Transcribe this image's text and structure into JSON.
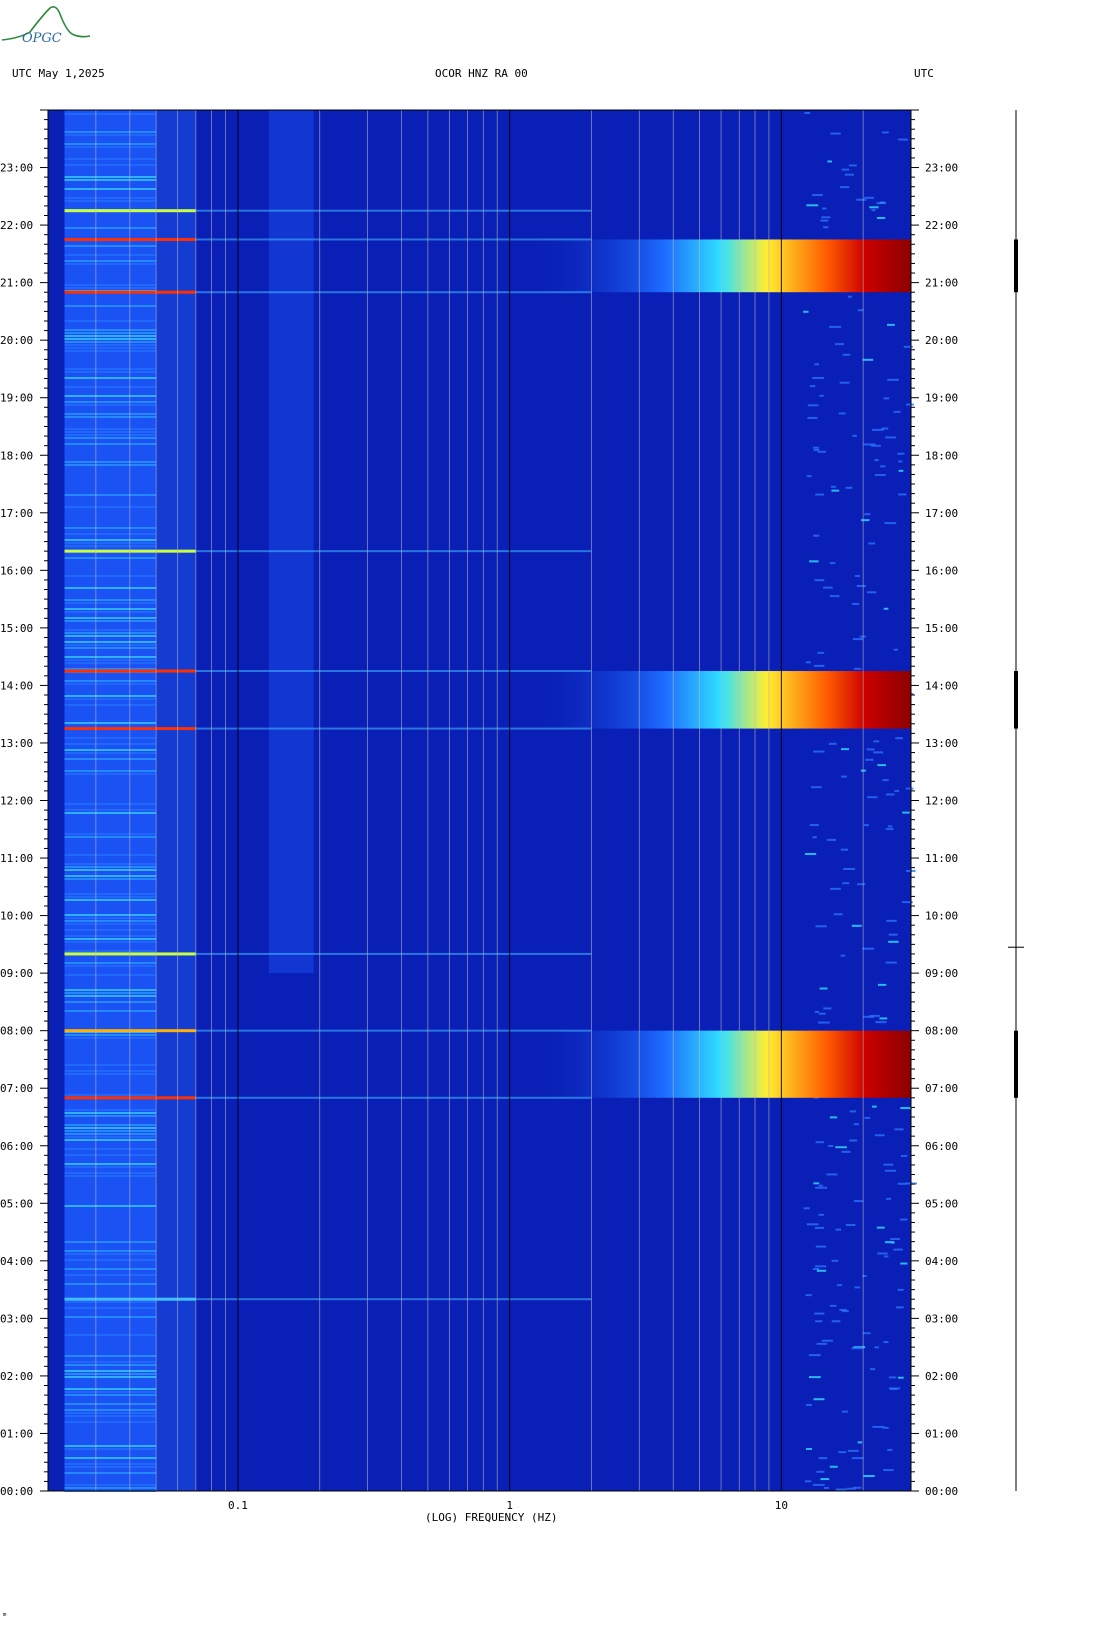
{
  "header": {
    "logo_text": "OPGC",
    "left_label": "UTC  May 1,2025",
    "center_label": "OCOR HNZ RA 00",
    "right_label": "UTC"
  },
  "footer_mark": "ᵐ",
  "chart_data": {
    "type": "heatmap",
    "title": "OCOR HNZ RA 00",
    "date": "May 1,2025",
    "xlabel": "(LOG) FREQUENCY (HZ)",
    "ylabel": "UTC",
    "x_scale": "log",
    "xlim": [
      0.02,
      30
    ],
    "x_tick_labels": [
      {
        "value": 0.1,
        "label": "0.1"
      },
      {
        "value": 1,
        "label": "1"
      },
      {
        "value": 10,
        "label": "10"
      }
    ],
    "x_gridlines": [
      0.03,
      0.04,
      0.05,
      0.06,
      0.07,
      0.08,
      0.09,
      0.1,
      0.2,
      0.3,
      0.4,
      0.5,
      0.6,
      0.7,
      0.8,
      0.9,
      1,
      2,
      3,
      4,
      5,
      6,
      7,
      8,
      9,
      10,
      20
    ],
    "ylim_hours": [
      0,
      24
    ],
    "y_ticks": [
      "00:00",
      "01:00",
      "02:00",
      "03:00",
      "04:00",
      "05:00",
      "06:00",
      "07:00",
      "08:00",
      "09:00",
      "10:00",
      "11:00",
      "12:00",
      "13:00",
      "14:00",
      "15:00",
      "16:00",
      "17:00",
      "18:00",
      "19:00",
      "20:00",
      "21:00",
      "22:00",
      "23:00"
    ],
    "colormap": [
      "#00008b",
      "#0000ff",
      "#0080ff",
      "#00ffff",
      "#ffff00",
      "#ff8000",
      "#ff0000",
      "#8b0000"
    ],
    "background_color": "#0a1fb5",
    "broadband_bursts": [
      {
        "start": "06:50",
        "end": "08:00",
        "color_low": "#1e50ff",
        "color_high": "#8b0000"
      },
      {
        "start": "13:15",
        "end": "14:15",
        "color_low": "#1e50ff",
        "color_high": "#8b0000"
      },
      {
        "start": "20:50",
        "end": "21:45",
        "color_low": "#1e50ff",
        "color_high": "#8b0000"
      }
    ],
    "lowfreq_lines": [
      {
        "time": "06:50",
        "color": "#ff3000"
      },
      {
        "time": "08:00",
        "color": "#ffb000"
      },
      {
        "time": "13:15",
        "color": "#ff3000"
      },
      {
        "time": "14:15",
        "color": "#ff3000"
      },
      {
        "time": "20:50",
        "color": "#ff3000"
      },
      {
        "time": "21:45",
        "color": "#ff3000"
      },
      {
        "time": "16:20",
        "color": "#c8ff40"
      },
      {
        "time": "09:20",
        "color": "#c8ff40"
      },
      {
        "time": "03:20",
        "color": "#40c0ff"
      },
      {
        "time": "22:15",
        "color": "#c8ff40"
      }
    ]
  }
}
